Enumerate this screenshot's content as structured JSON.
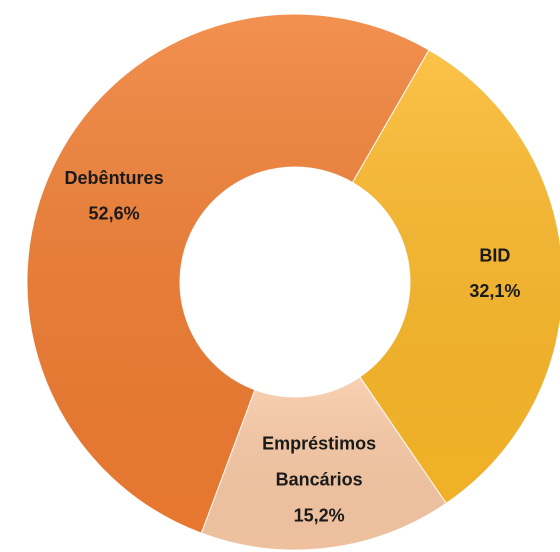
{
  "chart_data": {
    "type": "donut",
    "categories": [
      "BID",
      "Empréstimos Bancários",
      "Debêntures"
    ],
    "values": [
      32.1,
      15.2,
      52.6
    ],
    "value_labels": [
      "32,1%",
      "15,2%",
      "52,6%"
    ],
    "colors": [
      "#fbb829",
      "#f8c9a5",
      "#f07d32"
    ]
  }
}
